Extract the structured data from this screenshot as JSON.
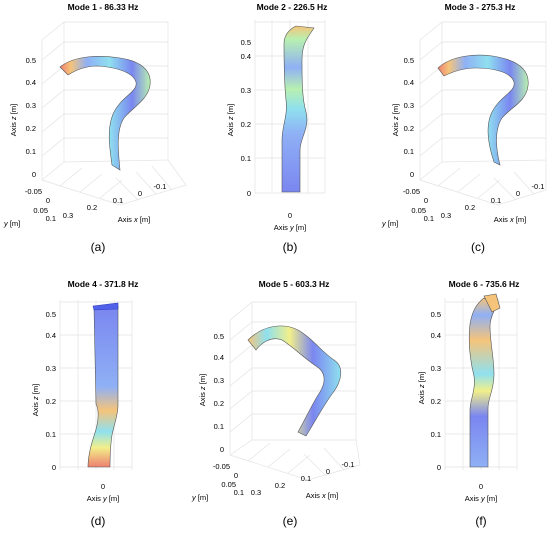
{
  "colormap": {
    "name": "jet-light",
    "stops": [
      "#7a86f0",
      "#8fb0f5",
      "#8fe0ef",
      "#b8f0b0",
      "#f2ef8a",
      "#f5c47a",
      "#ee7f6f"
    ]
  },
  "chart_data": [
    {
      "type": "surface3d",
      "title": "Mode 1 - 86.33 Hz",
      "caption": "(a)",
      "zlabel_prefix": "Axis ",
      "zlabel_var": "z",
      "zlabel_unit": " [m]",
      "zticks": [
        "0",
        "0.1",
        "0.2",
        "0.3",
        "0.4",
        "0.5"
      ],
      "ylabel_var": "y",
      "ylabel_unit": " [m]",
      "yticks": [
        "-0.05",
        "0",
        "0.05",
        "0.1"
      ],
      "xlabel_prefix": "Axis ",
      "xlabel_var": "x",
      "xlabel_unit": " [m]",
      "xticks": [
        "0.3",
        "0.2",
        "0.1",
        "0",
        "-0.1"
      ]
    },
    {
      "type": "surface3d",
      "title": "Mode 2 - 226.5 Hz",
      "caption": "(b)",
      "zlabel_prefix": "Axis ",
      "zlabel_var": "z",
      "zlabel_unit": " [m]",
      "zticks": [
        "0",
        "0.1",
        "0.2",
        "0.3",
        "0.4",
        "0.5"
      ],
      "xlabel_prefix": "Axis ",
      "xlabel_var": "y",
      "xlabel_unit": " [m]",
      "xticks": [
        "0"
      ]
    },
    {
      "type": "surface3d",
      "title": "Mode 3 - 275.3 Hz",
      "caption": "(c)",
      "zlabel_prefix": "Axis ",
      "zlabel_var": "z",
      "zlabel_unit": " [m]",
      "zticks": [
        "0",
        "0.1",
        "0.2",
        "0.3",
        "0.4",
        "0.5"
      ],
      "ylabel_var": "y",
      "ylabel_unit": " [m]",
      "yticks": [
        "-0.05",
        "0",
        "0.05",
        "0.1"
      ],
      "xlabel_prefix": "Axis ",
      "xlabel_var": "x",
      "xlabel_unit": " [m]",
      "xticks": [
        "0.3",
        "0.2",
        "0.1",
        "0",
        "-0.1"
      ]
    },
    {
      "type": "surface3d",
      "title": "Mode 4 - 371.8 Hz",
      "caption": "(d)",
      "zlabel_prefix": "Axis ",
      "zlabel_var": "z",
      "zlabel_unit": " [m]",
      "zticks": [
        "0",
        "0.1",
        "0.2",
        "0.3",
        "0.4",
        "0.5"
      ],
      "xlabel_prefix": "Axis ",
      "xlabel_var": "y",
      "xlabel_unit": " [m]",
      "xticks": [
        "0"
      ]
    },
    {
      "type": "surface3d",
      "title": "Mode 5 - 603.3 Hz",
      "caption": "(e)",
      "zlabel_prefix": "Axis ",
      "zlabel_var": "z",
      "zlabel_unit": " [m]",
      "zticks": [
        "0",
        "0.1",
        "0.2",
        "0.3",
        "0.4",
        "0.5"
      ],
      "ylabel_var": "y",
      "ylabel_unit": " [m]",
      "yticks": [
        "-0.05",
        "0",
        "0.05",
        "0.1"
      ],
      "xlabel_prefix": "Axis ",
      "xlabel_var": "x",
      "xlabel_unit": " [m]",
      "xticks": [
        "0.3",
        "0.2",
        "0.1",
        "0",
        "-0.1"
      ]
    },
    {
      "type": "surface3d",
      "title": "Mode 6 - 735.6 Hz",
      "caption": "(f)",
      "zlabel_prefix": "Axis ",
      "zlabel_var": "z",
      "zlabel_unit": " [m]",
      "zticks": [
        "0",
        "0.1",
        "0.2",
        "0.3",
        "0.4",
        "0.5"
      ],
      "xlabel_prefix": "Axis ",
      "xlabel_var": "y",
      "xlabel_unit": " [m]",
      "xticks": [
        "0"
      ]
    }
  ]
}
